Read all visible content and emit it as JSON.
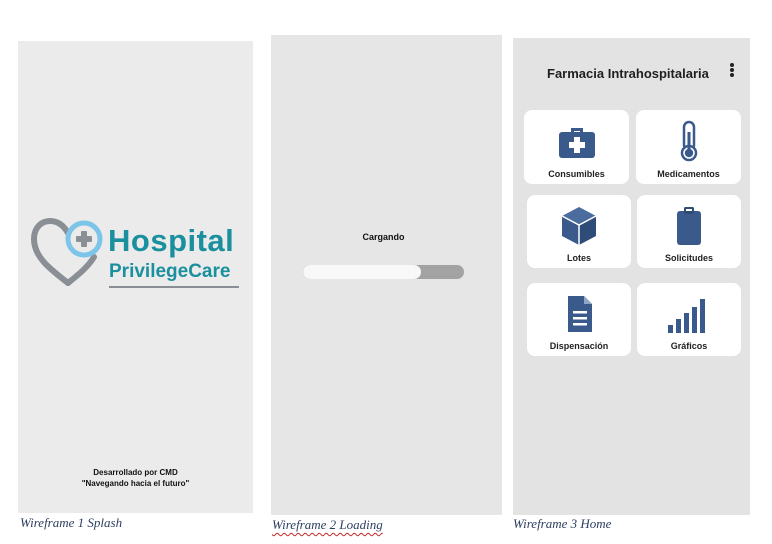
{
  "splash": {
    "logo_word1": "Hospital",
    "logo_word2": "PrivilegeCare",
    "credit_line1": "Desarrollado por CMD",
    "credit_line2": "\"Navegando hacia el futuro\"",
    "caption": "Wireframe 1 Splash"
  },
  "loading": {
    "label": "Cargando",
    "progress": 0.73,
    "caption": "Wireframe 2 Loading"
  },
  "home": {
    "title": "Farmacia Intrahospitalaria",
    "tiles": [
      {
        "label": "Consumibles",
        "icon": "first-aid-kit-icon"
      },
      {
        "label": "Medicamentos",
        "icon": "thermometer-icon"
      },
      {
        "label": "Lotes",
        "icon": "box-icon"
      },
      {
        "label": "Solicitudes",
        "icon": "clipboard-icon"
      },
      {
        "label": "Dispensación",
        "icon": "document-icon"
      },
      {
        "label": "Gráficos",
        "icon": "bar-chart-icon"
      }
    ],
    "caption": "Wireframe 3 Home"
  },
  "colors": {
    "brand_teal": "#1a8f9e",
    "icon_blue": "#3a5a8c",
    "heart_gray": "#8a8f96",
    "cross_light_blue": "#7cc4e8"
  }
}
